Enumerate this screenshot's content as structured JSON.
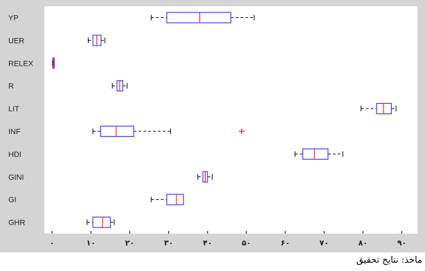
{
  "chart_data": {
    "type": "boxplot",
    "orientation": "horizontal",
    "title": "",
    "xlabel": "",
    "ylabel": "",
    "xlim": [
      -2,
      94
    ],
    "x_ticks": [
      0,
      10,
      20,
      30,
      40,
      50,
      60,
      70,
      80,
      90
    ],
    "x_tick_labels": [
      "۰",
      "۱۰",
      "۲۰",
      "۳۰",
      "۴۰",
      "۵۰",
      "۶۰",
      "۷۰",
      "۸۰",
      "۹۰"
    ],
    "grid": false,
    "colors": {
      "box": "#3b3bff",
      "median": "#ff2020",
      "whisker": "#000000",
      "outlier": "#ff0000",
      "background": "#d4d4d4",
      "axes": "#ffffff"
    },
    "categories": [
      "YP",
      "UER",
      "RELEX",
      "R",
      "LIT",
      "INF",
      "HDI",
      "GINI",
      "GI",
      "GHR"
    ],
    "boxes": [
      {
        "label": "YP",
        "whisker_low": 25.5,
        "q1": 29.5,
        "median": 38.0,
        "q3": 46.0,
        "whisker_high": 52.0,
        "outliers": []
      },
      {
        "label": "UER",
        "whisker_low": 9.3,
        "q1": 10.5,
        "median": 11.5,
        "q3": 12.6,
        "whisker_high": 13.6,
        "outliers": []
      },
      {
        "label": "RELEX",
        "whisker_low": 0.1,
        "q1": 0.2,
        "median": 0.3,
        "q3": 0.4,
        "whisker_high": 0.5,
        "outliers": []
      },
      {
        "label": "R",
        "whisker_low": 15.5,
        "q1": 16.7,
        "median": 17.4,
        "q3": 18.2,
        "whisker_high": 19.3,
        "outliers": []
      },
      {
        "label": "LIT",
        "whisker_low": 79.5,
        "q1": 83.5,
        "median": 85.3,
        "q3": 87.3,
        "whisker_high": 88.5,
        "outliers": []
      },
      {
        "label": "INF",
        "whisker_low": 10.5,
        "q1": 12.5,
        "median": 16.5,
        "q3": 21.0,
        "whisker_high": 30.5,
        "outliers": [
          48.8
        ]
      },
      {
        "label": "HDI",
        "whisker_low": 62.5,
        "q1": 64.5,
        "median": 67.5,
        "q3": 71.0,
        "whisker_high": 74.8,
        "outliers": []
      },
      {
        "label": "GINI",
        "whisker_low": 37.5,
        "q1": 38.8,
        "median": 39.4,
        "q3": 40.0,
        "whisker_high": 41.2,
        "outliers": []
      },
      {
        "label": "GI",
        "whisker_low": 25.5,
        "q1": 29.5,
        "median": 32.0,
        "q3": 33.8,
        "whisker_high": 33.8,
        "outliers": []
      },
      {
        "label": "GHR",
        "whisker_low": 9.0,
        "q1": 10.5,
        "median": 13.0,
        "q3": 15.0,
        "whisker_high": 16.0,
        "outliers": []
      }
    ]
  },
  "caption": "ماخذ: نتایج تحقیق"
}
